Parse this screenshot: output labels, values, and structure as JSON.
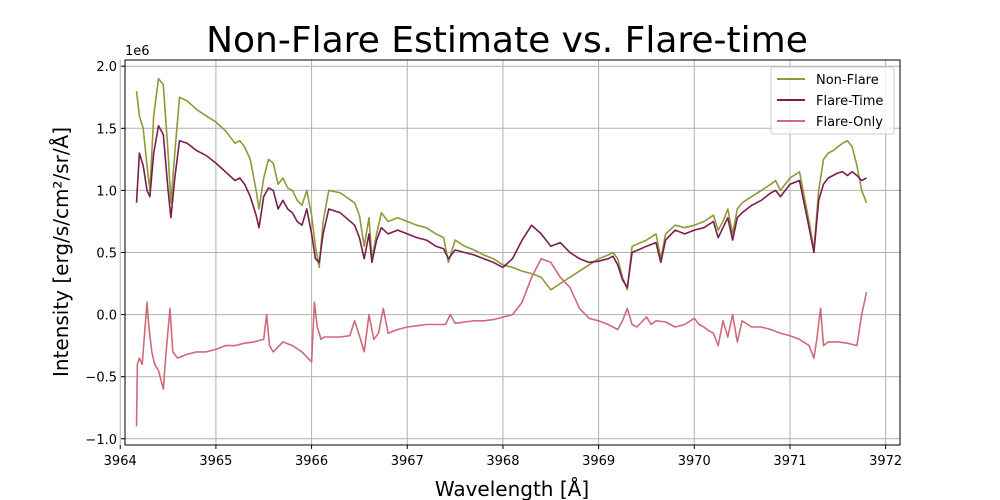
{
  "chart_data": {
    "type": "line",
    "title": "Non-Flare Estimate vs. Flare-time",
    "xlabel": "Wavelength [Å]",
    "ylabel": "Intensity [erg/s/cm²/sr/Å]",
    "y_offset_label": "1e6",
    "xlim": [
      3964.05,
      3972.15
    ],
    "ylim": [
      -1.05,
      2.05
    ],
    "x_ticks": [
      3964,
      3965,
      3966,
      3967,
      3968,
      3969,
      3970,
      3971,
      3972
    ],
    "x_tick_labels": [
      "3964",
      "3965",
      "3966",
      "3967",
      "3968",
      "3969",
      "3970",
      "3971",
      "3972"
    ],
    "y_ticks": [
      -1.0,
      -0.5,
      0.0,
      0.5,
      1.0,
      1.5,
      2.0
    ],
    "y_tick_labels": [
      "−1.0",
      "−0.5",
      "0.0",
      "0.5",
      "1.0",
      "1.5",
      "2.0"
    ],
    "grid": true,
    "legend_position": "top-right",
    "series": [
      {
        "name": "Non-Flare",
        "color": "#8e9a37",
        "x": [
          3964.17,
          3964.2,
          3964.24,
          3964.28,
          3964.31,
          3964.35,
          3964.4,
          3964.45,
          3964.5,
          3964.53,
          3964.57,
          3964.62,
          3964.7,
          3964.8,
          3964.9,
          3965.0,
          3965.1,
          3965.2,
          3965.25,
          3965.3,
          3965.36,
          3965.42,
          3965.45,
          3965.5,
          3965.55,
          3965.6,
          3965.65,
          3965.7,
          3965.75,
          3965.8,
          3965.85,
          3965.9,
          3965.95,
          3966.0,
          3966.04,
          3966.08,
          3966.12,
          3966.18,
          3966.3,
          3966.45,
          3966.5,
          3966.55,
          3966.6,
          3966.63,
          3966.68,
          3966.73,
          3966.8,
          3966.9,
          3967.0,
          3967.1,
          3967.2,
          3967.3,
          3967.38,
          3967.43,
          3967.5,
          3967.6,
          3967.7,
          3967.8,
          3967.9,
          3968.0,
          3968.1,
          3968.2,
          3968.3,
          3968.4,
          3968.5,
          3968.6,
          3968.7,
          3968.8,
          3968.9,
          3969.0,
          3969.1,
          3969.15,
          3969.2,
          3969.25,
          3969.3,
          3969.35,
          3969.5,
          3969.6,
          3969.65,
          3969.7,
          3969.8,
          3969.9,
          3970.0,
          3970.1,
          3970.2,
          3970.25,
          3970.3,
          3970.35,
          3970.4,
          3970.45,
          3970.5,
          3970.6,
          3970.7,
          3970.8,
          3970.85,
          3970.9,
          3971.0,
          3971.1,
          3971.2,
          3971.25,
          3971.3,
          3971.35,
          3971.4,
          3971.45,
          3971.5,
          3971.55,
          3971.6,
          3971.65,
          3971.7,
          3971.75,
          3971.8
        ],
        "y": [
          1.8,
          1.6,
          1.5,
          1.2,
          1.0,
          1.6,
          1.9,
          1.85,
          1.3,
          0.9,
          1.3,
          1.75,
          1.72,
          1.65,
          1.6,
          1.55,
          1.48,
          1.38,
          1.4,
          1.35,
          1.25,
          1.0,
          0.85,
          1.1,
          1.25,
          1.22,
          1.05,
          1.1,
          1.02,
          1.0,
          0.92,
          0.88,
          1.0,
          0.8,
          0.55,
          0.38,
          0.75,
          1.0,
          0.98,
          0.9,
          0.8,
          0.55,
          0.78,
          0.45,
          0.65,
          0.82,
          0.75,
          0.78,
          0.75,
          0.72,
          0.7,
          0.65,
          0.62,
          0.42,
          0.6,
          0.55,
          0.52,
          0.48,
          0.45,
          0.4,
          0.38,
          0.35,
          0.33,
          0.3,
          0.2,
          0.25,
          0.3,
          0.35,
          0.4,
          0.45,
          0.48,
          0.5,
          0.45,
          0.3,
          0.2,
          0.55,
          0.6,
          0.65,
          0.45,
          0.65,
          0.72,
          0.7,
          0.72,
          0.75,
          0.8,
          0.68,
          0.75,
          0.85,
          0.65,
          0.85,
          0.9,
          0.95,
          1.0,
          1.05,
          1.08,
          1.0,
          1.1,
          1.15,
          0.75,
          0.52,
          1.0,
          1.25,
          1.3,
          1.32,
          1.35,
          1.38,
          1.4,
          1.35,
          1.2,
          1.0,
          0.9
        ]
      },
      {
        "name": "Flare-Time",
        "color": "#7a1d4e",
        "x": [
          3964.17,
          3964.2,
          3964.24,
          3964.28,
          3964.31,
          3964.35,
          3964.4,
          3964.45,
          3964.5,
          3964.53,
          3964.57,
          3964.62,
          3964.7,
          3964.8,
          3964.9,
          3965.0,
          3965.1,
          3965.2,
          3965.25,
          3965.3,
          3965.36,
          3965.42,
          3965.45,
          3965.5,
          3965.55,
          3965.6,
          3965.65,
          3965.7,
          3965.75,
          3965.8,
          3965.85,
          3965.9,
          3965.95,
          3966.0,
          3966.04,
          3966.08,
          3966.12,
          3966.18,
          3966.3,
          3966.45,
          3966.5,
          3966.55,
          3966.6,
          3966.63,
          3966.68,
          3966.73,
          3966.8,
          3966.9,
          3967.0,
          3967.1,
          3967.2,
          3967.3,
          3967.38,
          3967.43,
          3967.5,
          3967.6,
          3967.7,
          3967.8,
          3967.9,
          3968.0,
          3968.1,
          3968.2,
          3968.3,
          3968.4,
          3968.5,
          3968.6,
          3968.7,
          3968.8,
          3968.9,
          3969.0,
          3969.1,
          3969.15,
          3969.2,
          3969.25,
          3969.3,
          3969.35,
          3969.5,
          3969.6,
          3969.65,
          3969.7,
          3969.8,
          3969.9,
          3970.0,
          3970.1,
          3970.2,
          3970.25,
          3970.3,
          3970.35,
          3970.4,
          3970.45,
          3970.5,
          3970.6,
          3970.7,
          3970.8,
          3970.85,
          3970.9,
          3971.0,
          3971.1,
          3971.2,
          3971.25,
          3971.3,
          3971.35,
          3971.4,
          3971.45,
          3971.5,
          3971.55,
          3971.6,
          3971.65,
          3971.7,
          3971.75,
          3971.8
        ],
        "y": [
          0.9,
          1.3,
          1.2,
          1.0,
          0.95,
          1.3,
          1.52,
          1.45,
          1.0,
          0.78,
          1.1,
          1.4,
          1.38,
          1.32,
          1.28,
          1.22,
          1.15,
          1.08,
          1.1,
          1.05,
          0.95,
          0.8,
          0.7,
          0.95,
          1.02,
          1.0,
          0.85,
          0.92,
          0.85,
          0.82,
          0.75,
          0.72,
          0.85,
          0.65,
          0.45,
          0.42,
          0.65,
          0.85,
          0.82,
          0.72,
          0.62,
          0.45,
          0.65,
          0.42,
          0.6,
          0.7,
          0.65,
          0.68,
          0.65,
          0.62,
          0.6,
          0.55,
          0.53,
          0.45,
          0.52,
          0.5,
          0.48,
          0.45,
          0.42,
          0.38,
          0.45,
          0.6,
          0.72,
          0.65,
          0.55,
          0.58,
          0.5,
          0.45,
          0.42,
          0.43,
          0.45,
          0.47,
          0.4,
          0.28,
          0.22,
          0.5,
          0.55,
          0.58,
          0.42,
          0.6,
          0.68,
          0.65,
          0.68,
          0.7,
          0.75,
          0.62,
          0.7,
          0.78,
          0.6,
          0.78,
          0.82,
          0.88,
          0.92,
          0.98,
          1.0,
          0.95,
          1.05,
          1.08,
          0.7,
          0.5,
          0.92,
          1.05,
          1.1,
          1.12,
          1.14,
          1.15,
          1.12,
          1.15,
          1.12,
          1.08,
          1.1
        ]
      },
      {
        "name": "Flare-Only",
        "color": "#cf6a7a",
        "x": [
          3964.17,
          3964.18,
          3964.2,
          3964.23,
          3964.26,
          3964.28,
          3964.3,
          3964.33,
          3964.36,
          3964.4,
          3964.45,
          3964.48,
          3964.52,
          3964.55,
          3964.6,
          3964.7,
          3964.8,
          3964.9,
          3965.0,
          3965.1,
          3965.2,
          3965.3,
          3965.4,
          3965.5,
          3965.53,
          3965.56,
          3965.6,
          3965.7,
          3965.8,
          3965.9,
          3966.0,
          3966.03,
          3966.06,
          3966.1,
          3966.13,
          3966.2,
          3966.3,
          3966.4,
          3966.45,
          3966.5,
          3966.55,
          3966.6,
          3966.65,
          3966.7,
          3966.75,
          3966.8,
          3966.9,
          3967.0,
          3967.1,
          3967.2,
          3967.3,
          3967.4,
          3967.45,
          3967.5,
          3967.6,
          3967.7,
          3967.8,
          3967.9,
          3968.0,
          3968.1,
          3968.2,
          3968.3,
          3968.4,
          3968.5,
          3968.6,
          3968.7,
          3968.8,
          3968.9,
          3969.0,
          3969.1,
          3969.15,
          3969.2,
          3969.25,
          3969.3,
          3969.35,
          3969.4,
          3969.5,
          3969.55,
          3969.6,
          3969.7,
          3969.8,
          3969.9,
          3970.0,
          3970.05,
          3970.1,
          3970.15,
          3970.2,
          3970.25,
          3970.3,
          3970.35,
          3970.4,
          3970.45,
          3970.5,
          3970.6,
          3970.7,
          3970.8,
          3970.9,
          3971.0,
          3971.1,
          3971.2,
          3971.25,
          3971.28,
          3971.32,
          3971.35,
          3971.4,
          3971.5,
          3971.6,
          3971.7,
          3971.75,
          3971.8
        ],
        "y": [
          -0.9,
          -0.4,
          -0.35,
          -0.4,
          -0.1,
          0.1,
          -0.1,
          -0.3,
          -0.4,
          -0.45,
          -0.6,
          -0.3,
          0.05,
          -0.3,
          -0.35,
          -0.32,
          -0.3,
          -0.3,
          -0.28,
          -0.25,
          -0.25,
          -0.23,
          -0.22,
          -0.2,
          0.0,
          -0.25,
          -0.3,
          -0.22,
          -0.25,
          -0.3,
          -0.38,
          0.1,
          -0.1,
          -0.2,
          -0.18,
          -0.18,
          -0.18,
          -0.17,
          -0.05,
          -0.17,
          -0.3,
          0.0,
          -0.2,
          -0.15,
          0.05,
          -0.15,
          -0.12,
          -0.1,
          -0.09,
          -0.08,
          -0.08,
          -0.08,
          0.0,
          -0.07,
          -0.06,
          -0.05,
          -0.05,
          -0.04,
          -0.02,
          0.0,
          0.1,
          0.3,
          0.45,
          0.42,
          0.3,
          0.22,
          0.05,
          -0.03,
          -0.05,
          -0.08,
          -0.1,
          -0.12,
          -0.05,
          0.05,
          -0.08,
          -0.1,
          -0.02,
          -0.08,
          -0.05,
          -0.06,
          -0.1,
          -0.08,
          -0.03,
          -0.08,
          -0.1,
          -0.13,
          -0.15,
          -0.25,
          -0.05,
          -0.18,
          0.0,
          -0.22,
          -0.05,
          -0.1,
          -0.1,
          -0.12,
          -0.15,
          -0.17,
          -0.2,
          -0.25,
          -0.35,
          -0.2,
          0.05,
          -0.25,
          -0.22,
          -0.22,
          -0.23,
          -0.25,
          0.0,
          0.18
        ]
      }
    ]
  }
}
